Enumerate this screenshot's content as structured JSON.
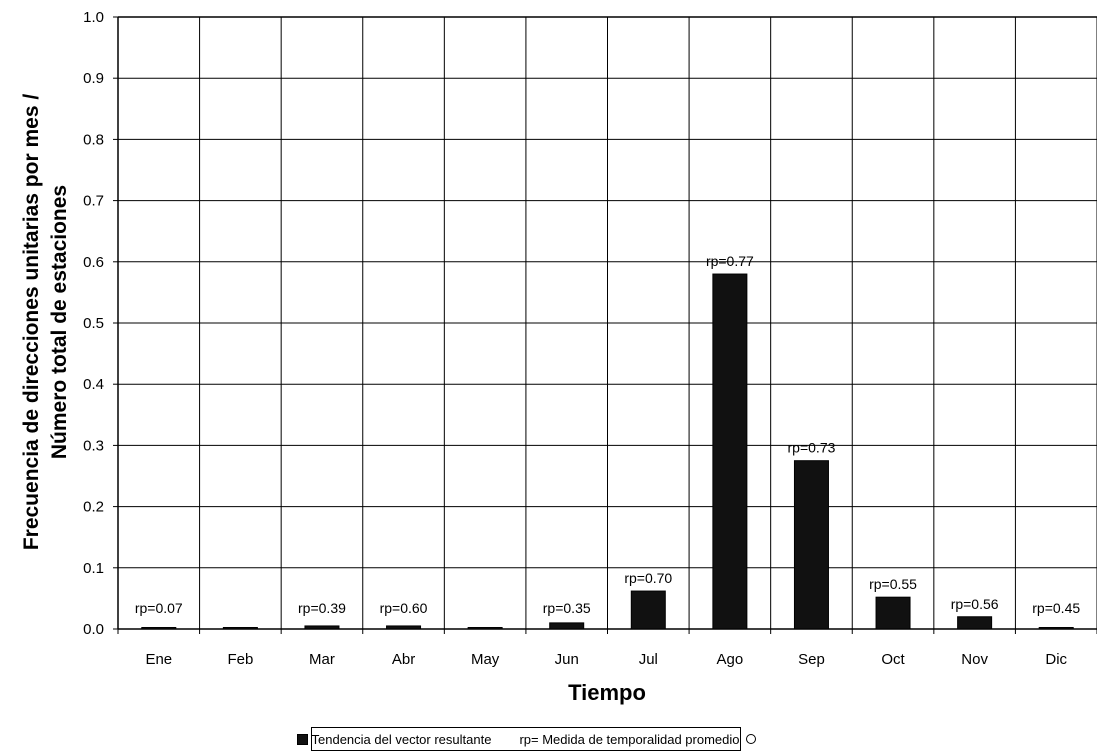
{
  "chart_data": {
    "type": "bar",
    "categories": [
      "Ene",
      "Feb",
      "Mar",
      "Abr",
      "May",
      "Jun",
      "Jul",
      "Ago",
      "Sep",
      "Oct",
      "Nov",
      "Dic"
    ],
    "values": [
      0.002,
      0.0,
      0.005,
      0.005,
      0.0,
      0.01,
      0.062,
      0.58,
      0.275,
      0.052,
      0.02,
      0.002
    ],
    "annotations": [
      "rp=0.07",
      "",
      "rp=0.39",
      "rp=0.60",
      "",
      "rp=0.35",
      "rp=0.70",
      "rp=0.77",
      "rp=0.73",
      "rp=0.55",
      "rp=0.56",
      "rp=0.45"
    ],
    "xlabel": "Tiempo",
    "ylabel_line1": "Frecuencia de direcciones unitarias por mes /",
    "ylabel_line2": "Número total de estaciones",
    "ylim": [
      0,
      1.0
    ],
    "yticks": [
      "0.0",
      "0.1",
      "0.2",
      "0.3",
      "0.4",
      "0.5",
      "0.6",
      "0.7",
      "0.8",
      "0.9",
      "1.0"
    ],
    "grid": true,
    "bar_color": "#111111",
    "legend_position": "bottom",
    "legend": {
      "series_label": "Tendencia del vector resultante",
      "rp_label": "rp= Medida de temporalidad promedio"
    }
  }
}
